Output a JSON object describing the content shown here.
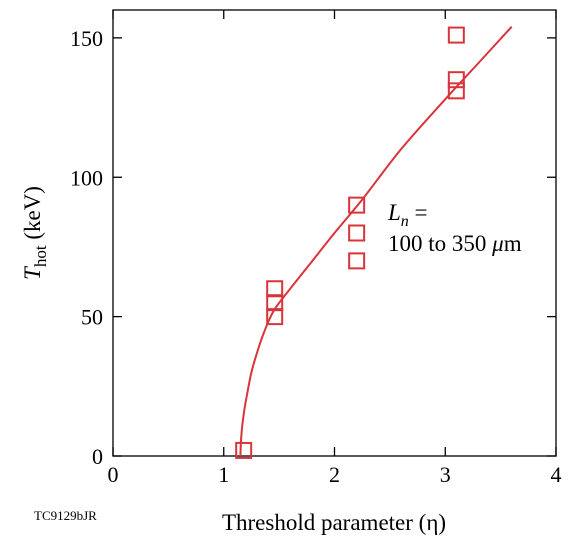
{
  "chart_data": {
    "type": "scatter",
    "xlabel": "Threshold parameter (η)",
    "ylabel_main": "T",
    "ylabel_sub": "hot",
    "ylabel_unit": " (keV)",
    "xlim": [
      0,
      4
    ],
    "ylim": [
      0,
      160
    ],
    "xticks": [
      0,
      1,
      2,
      3,
      4
    ],
    "yticks": [
      0,
      50,
      100,
      150
    ],
    "grid": false,
    "marker": "open-square",
    "color": "#d9343a",
    "points": [
      {
        "x": 1.18,
        "y": 2
      },
      {
        "x": 1.46,
        "y": 50
      },
      {
        "x": 1.46,
        "y": 55
      },
      {
        "x": 1.46,
        "y": 60
      },
      {
        "x": 2.2,
        "y": 70
      },
      {
        "x": 2.2,
        "y": 80
      },
      {
        "x": 2.2,
        "y": 90
      },
      {
        "x": 3.1,
        "y": 131
      },
      {
        "x": 3.1,
        "y": 135
      },
      {
        "x": 3.1,
        "y": 151
      }
    ],
    "fit_curve": [
      {
        "x": 1.15,
        "y": 0
      },
      {
        "x": 1.16,
        "y": 8
      },
      {
        "x": 1.18,
        "y": 15
      },
      {
        "x": 1.21,
        "y": 22
      },
      {
        "x": 1.25,
        "y": 30
      },
      {
        "x": 1.3,
        "y": 37
      },
      {
        "x": 1.36,
        "y": 44
      },
      {
        "x": 1.45,
        "y": 52
      },
      {
        "x": 1.6,
        "y": 60
      },
      {
        "x": 1.8,
        "y": 70
      },
      {
        "x": 2.0,
        "y": 80
      },
      {
        "x": 2.25,
        "y": 92
      },
      {
        "x": 2.6,
        "y": 110
      },
      {
        "x": 3.0,
        "y": 128
      },
      {
        "x": 3.3,
        "y": 141
      },
      {
        "x": 3.6,
        "y": 154
      }
    ],
    "annotation": {
      "line1_main": "L",
      "line1_sub": "n",
      "line1_rest": " =",
      "line2_prefix": "100 to 350 ",
      "line2_mu": "μ",
      "line2_unit": "m"
    }
  },
  "figure_id": "TC9129bJR"
}
